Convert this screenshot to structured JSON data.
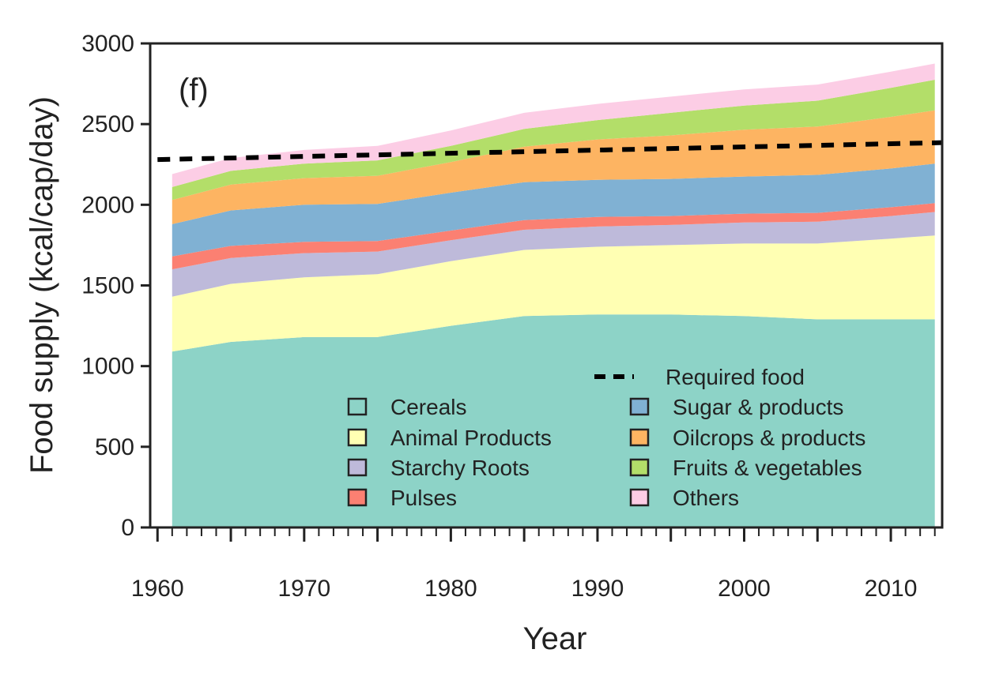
{
  "chart_data": {
    "type": "area",
    "stacked": true,
    "panel_label": "(f)",
    "xlabel": "Year",
    "ylabel": "Food supply (kcal/cap/day)",
    "xlim": [
      1959.5,
      2013.5
    ],
    "ylim": [
      0,
      3000
    ],
    "xticks": [
      1960,
      1970,
      1980,
      1990,
      2000,
      2010
    ],
    "yticks": [
      0,
      500,
      1000,
      1500,
      2000,
      2500,
      3000
    ],
    "x": [
      1961,
      1965,
      1970,
      1975,
      1980,
      1985,
      1990,
      1995,
      2000,
      2005,
      2010,
      2013
    ],
    "series": [
      {
        "name": "Cereals",
        "color": "#8dd3c7",
        "values": [
          1090,
          1150,
          1180,
          1180,
          1250,
          1310,
          1320,
          1320,
          1310,
          1290,
          1290,
          1290
        ]
      },
      {
        "name": "Animal Products",
        "color": "#ffffb3",
        "values": [
          340,
          360,
          370,
          390,
          400,
          410,
          420,
          430,
          450,
          470,
          500,
          520
        ]
      },
      {
        "name": "Starchy Roots",
        "color": "#bebada",
        "values": [
          170,
          160,
          150,
          140,
          130,
          125,
          125,
          125,
          130,
          135,
          140,
          145
        ]
      },
      {
        "name": "Pulses",
        "color": "#fb8072",
        "values": [
          80,
          75,
          70,
          65,
          60,
          60,
          60,
          55,
          55,
          55,
          55,
          55
        ]
      },
      {
        "name": "Sugar & products",
        "color": "#80b1d3",
        "values": [
          200,
          220,
          230,
          230,
          235,
          235,
          230,
          230,
          230,
          235,
          240,
          245
        ]
      },
      {
        "name": "Oilcrops & products",
        "color": "#fdb462",
        "values": [
          150,
          160,
          165,
          175,
          190,
          220,
          250,
          270,
          290,
          300,
          320,
          330
        ]
      },
      {
        "name": "Fruits & vegetables",
        "color": "#b3de69",
        "values": [
          80,
          85,
          90,
          95,
          100,
          110,
          120,
          140,
          150,
          160,
          180,
          190
        ]
      },
      {
        "name": "Others",
        "color": "#fccde5",
        "values": [
          80,
          80,
          85,
          90,
          95,
          100,
          100,
          100,
          100,
          100,
          100,
          100
        ]
      }
    ],
    "reference_line": {
      "name": "Required food",
      "style": "dashed",
      "color": "#000000",
      "x": [
        1960,
        2013.5
      ],
      "values": [
        2280,
        2385
      ]
    },
    "legend": {
      "placement": "bottom-right-inside",
      "line_entry": "Required food",
      "columns": [
        [
          "Cereals",
          "Animal Products",
          "Starchy Roots",
          "Pulses"
        ],
        [
          "Sugar & products",
          "Oilcrops & products",
          "Fruits & vegetables",
          "Others"
        ]
      ]
    }
  }
}
